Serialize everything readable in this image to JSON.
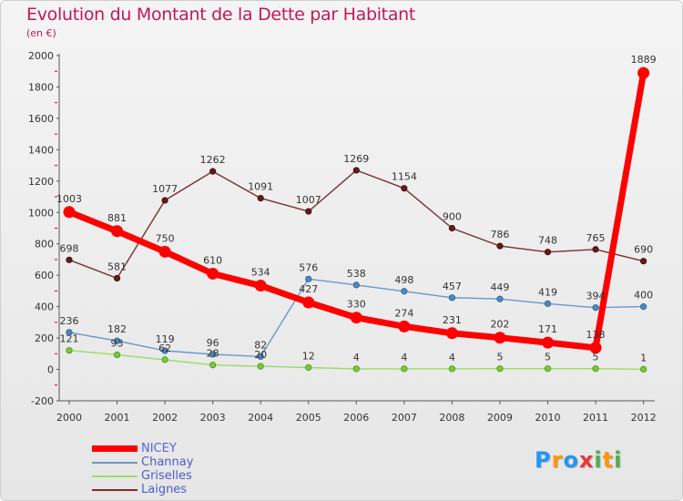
{
  "chart_data": {
    "type": "line",
    "title": "Evolution du Montant de la Dette par Habitant",
    "subtitle": "(en €)",
    "x": [
      "2000",
      "2001",
      "2002",
      "2003",
      "2004",
      "2005",
      "2006",
      "2007",
      "2008",
      "2009",
      "2010",
      "2011",
      "2012"
    ],
    "ylim": [
      -200,
      2000
    ],
    "yticks": [
      -200,
      0,
      200,
      400,
      600,
      800,
      1000,
      1200,
      1400,
      1600,
      1800,
      2000
    ],
    "grid": false,
    "legend_position": "bottom-left",
    "series": [
      {
        "name": "NICEY",
        "color": "#ff0000",
        "marker_color": "#ff0000",
        "values": [
          1003,
          881,
          750,
          610,
          534,
          427,
          330,
          274,
          231,
          202,
          171,
          138,
          1889
        ]
      },
      {
        "name": "Channay",
        "color": "#6699cc",
        "marker_color": "#4d88c4",
        "values": [
          236,
          182,
          119,
          96,
          82,
          576,
          538,
          498,
          457,
          449,
          419,
          394,
          400
        ]
      },
      {
        "name": "Griselles",
        "color": "#99dd66",
        "marker_color": "#77cc33",
        "values": [
          121,
          93,
          62,
          28,
          20,
          12,
          4,
          4,
          4,
          5,
          5,
          5,
          1
        ]
      },
      {
        "name": "Laignes",
        "color": "#7a2f2f",
        "marker_color": "#661a1a",
        "values": [
          698,
          581,
          1077,
          1262,
          1091,
          1007,
          1269,
          1154,
          900,
          786,
          748,
          765,
          690
        ]
      }
    ]
  },
  "legend": {
    "items": [
      {
        "label": "NICEY",
        "color": "#ff0000"
      },
      {
        "label": "Channay",
        "color": "#6699cc"
      },
      {
        "label": "Griselles",
        "color": "#99dd66"
      },
      {
        "label": "Laignes",
        "color": "#7a2f2f"
      }
    ]
  },
  "logo": {
    "text": "Proxiti",
    "letters": [
      {
        "ch": "P",
        "color": "#2196f3"
      },
      {
        "ch": "r",
        "color": "#ff9800"
      },
      {
        "ch": "o",
        "color": "#2196f3"
      },
      {
        "ch": "x",
        "color": "#e53935"
      },
      {
        "ch": "i",
        "color": "#4caf50"
      },
      {
        "ch": "t",
        "color": "#ff9800"
      },
      {
        "ch": "i",
        "color": "#4caf50"
      }
    ]
  }
}
